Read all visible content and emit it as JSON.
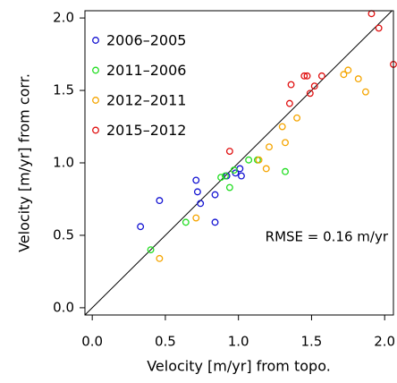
{
  "chart_data": {
    "type": "scatter",
    "x_label": "Velocity [m/yr] from topo.",
    "y_label": "Velocity [m/yr] from corr.",
    "annotation": "RMSE = 0.16 m/yr",
    "xlim": [
      -0.05,
      2.06
    ],
    "ylim": [
      -0.05,
      2.05
    ],
    "xticks": [
      {
        "value": 0,
        "label": "0.0"
      },
      {
        "value": 0.5,
        "label": "0.5"
      },
      {
        "value": 1,
        "label": "1.0"
      },
      {
        "value": 1.5,
        "label": "1.5"
      },
      {
        "value": 2,
        "label": "2.0"
      }
    ],
    "yticks": [
      {
        "value": 0,
        "label": "0.0"
      },
      {
        "value": 0.5,
        "label": "0.5"
      },
      {
        "value": 1,
        "label": "1.0"
      },
      {
        "value": 1.5,
        "label": "1.5"
      },
      {
        "value": 2,
        "label": "2.0"
      }
    ],
    "legend": "upper left",
    "series": [
      {
        "name": "2006–2005",
        "color": "#1414d2",
        "x": [
          0.33,
          0.46,
          0.71,
          0.72,
          0.74,
          0.84,
          0.84,
          0.92,
          1.01,
          1.02,
          0.98
        ],
        "values": [
          0.56,
          0.74,
          0.88,
          0.8,
          0.72,
          0.78,
          0.59,
          0.91,
          0.96,
          0.91,
          0.93
        ]
      },
      {
        "name": "2011–2006",
        "color": "#22dd22",
        "x": [
          0.4,
          0.64,
          0.88,
          0.91,
          0.94,
          0.97,
          1.07,
          1.13,
          1.32
        ],
        "values": [
          0.4,
          0.59,
          0.9,
          0.91,
          0.83,
          0.95,
          1.02,
          1.02,
          0.94
        ]
      },
      {
        "name": "2012–2011",
        "color": "#f5a500",
        "x": [
          0.46,
          0.71,
          1.14,
          1.19,
          1.21,
          1.3,
          1.32,
          1.4,
          1.72,
          1.75,
          1.82,
          1.87
        ],
        "values": [
          0.34,
          0.62,
          1.02,
          0.96,
          1.11,
          1.25,
          1.14,
          1.31,
          1.61,
          1.64,
          1.58,
          1.49
        ]
      },
      {
        "name": "2015–2012",
        "color": "#e01010",
        "x": [
          0.94,
          1.36,
          1.35,
          1.45,
          1.47,
          1.49,
          1.52,
          1.57,
          1.91,
          1.96,
          2.06
        ],
        "values": [
          1.08,
          1.54,
          1.41,
          1.6,
          1.6,
          1.48,
          1.53,
          1.6,
          2.03,
          1.93,
          1.68
        ]
      }
    ]
  }
}
